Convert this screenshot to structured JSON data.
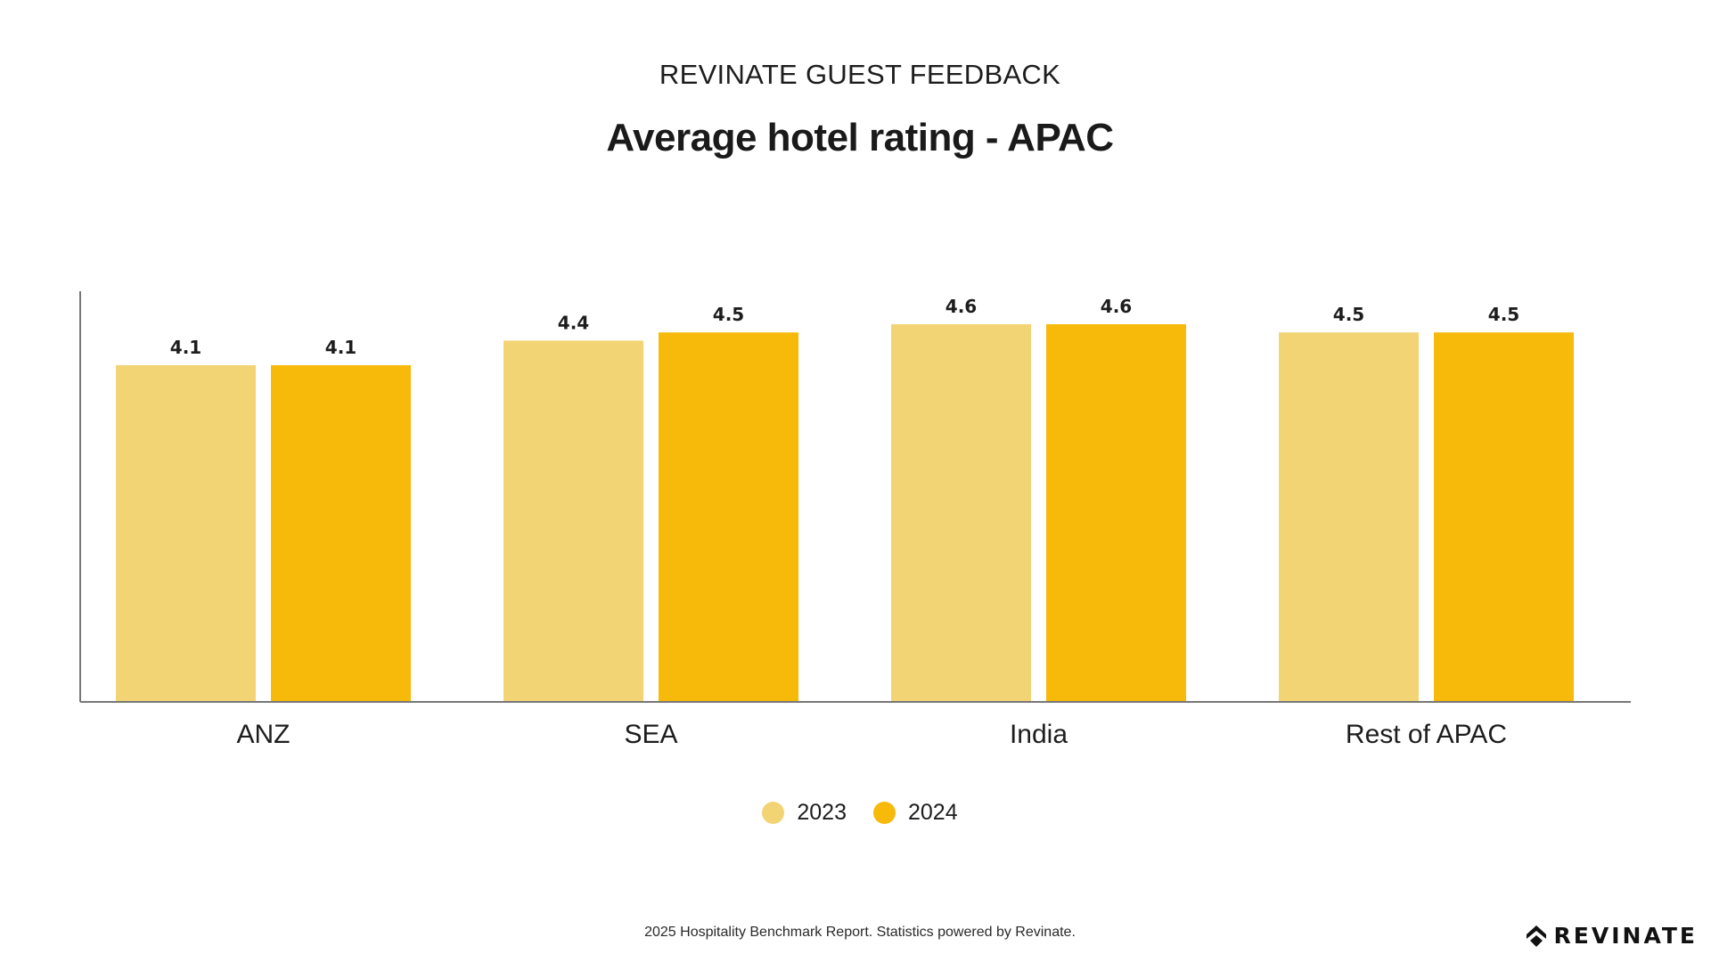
{
  "header": {
    "kicker": "REVINATE GUEST FEEDBACK",
    "title": "Average hotel rating - APAC"
  },
  "chart_data": {
    "type": "bar",
    "categories": [
      "ANZ",
      "SEA",
      "India",
      "Rest of APAC"
    ],
    "series": [
      {
        "name": "2023",
        "values": [
          4.1,
          4.4,
          4.6,
          4.5
        ],
        "color": "#f3d475"
      },
      {
        "name": "2024",
        "values": [
          4.1,
          4.5,
          4.6,
          4.5
        ],
        "color": "#f7b90a"
      }
    ],
    "title": "Average hotel rating - APAC",
    "xlabel": "",
    "ylabel": "",
    "ylim": [
      0,
      5
    ],
    "grid": false,
    "legend": "bottom-center",
    "data_labels": true
  },
  "footer": {
    "note": "2025 Hospitality Benchmark Report. Statistics powered by Revinate."
  },
  "logo": {
    "text": "REVINATE",
    "icon": "revinate-logo-icon"
  }
}
